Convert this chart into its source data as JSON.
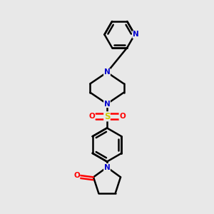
{
  "bg_color": "#e8e8e8",
  "bond_color": "#000000",
  "N_color": "#0000cc",
  "O_color": "#ff0000",
  "S_color": "#cccc00",
  "line_width": 1.8,
  "figsize": [
    3.0,
    3.0
  ],
  "dpi": 100,
  "xlim": [
    0,
    1
  ],
  "ylim": [
    0,
    1
  ]
}
